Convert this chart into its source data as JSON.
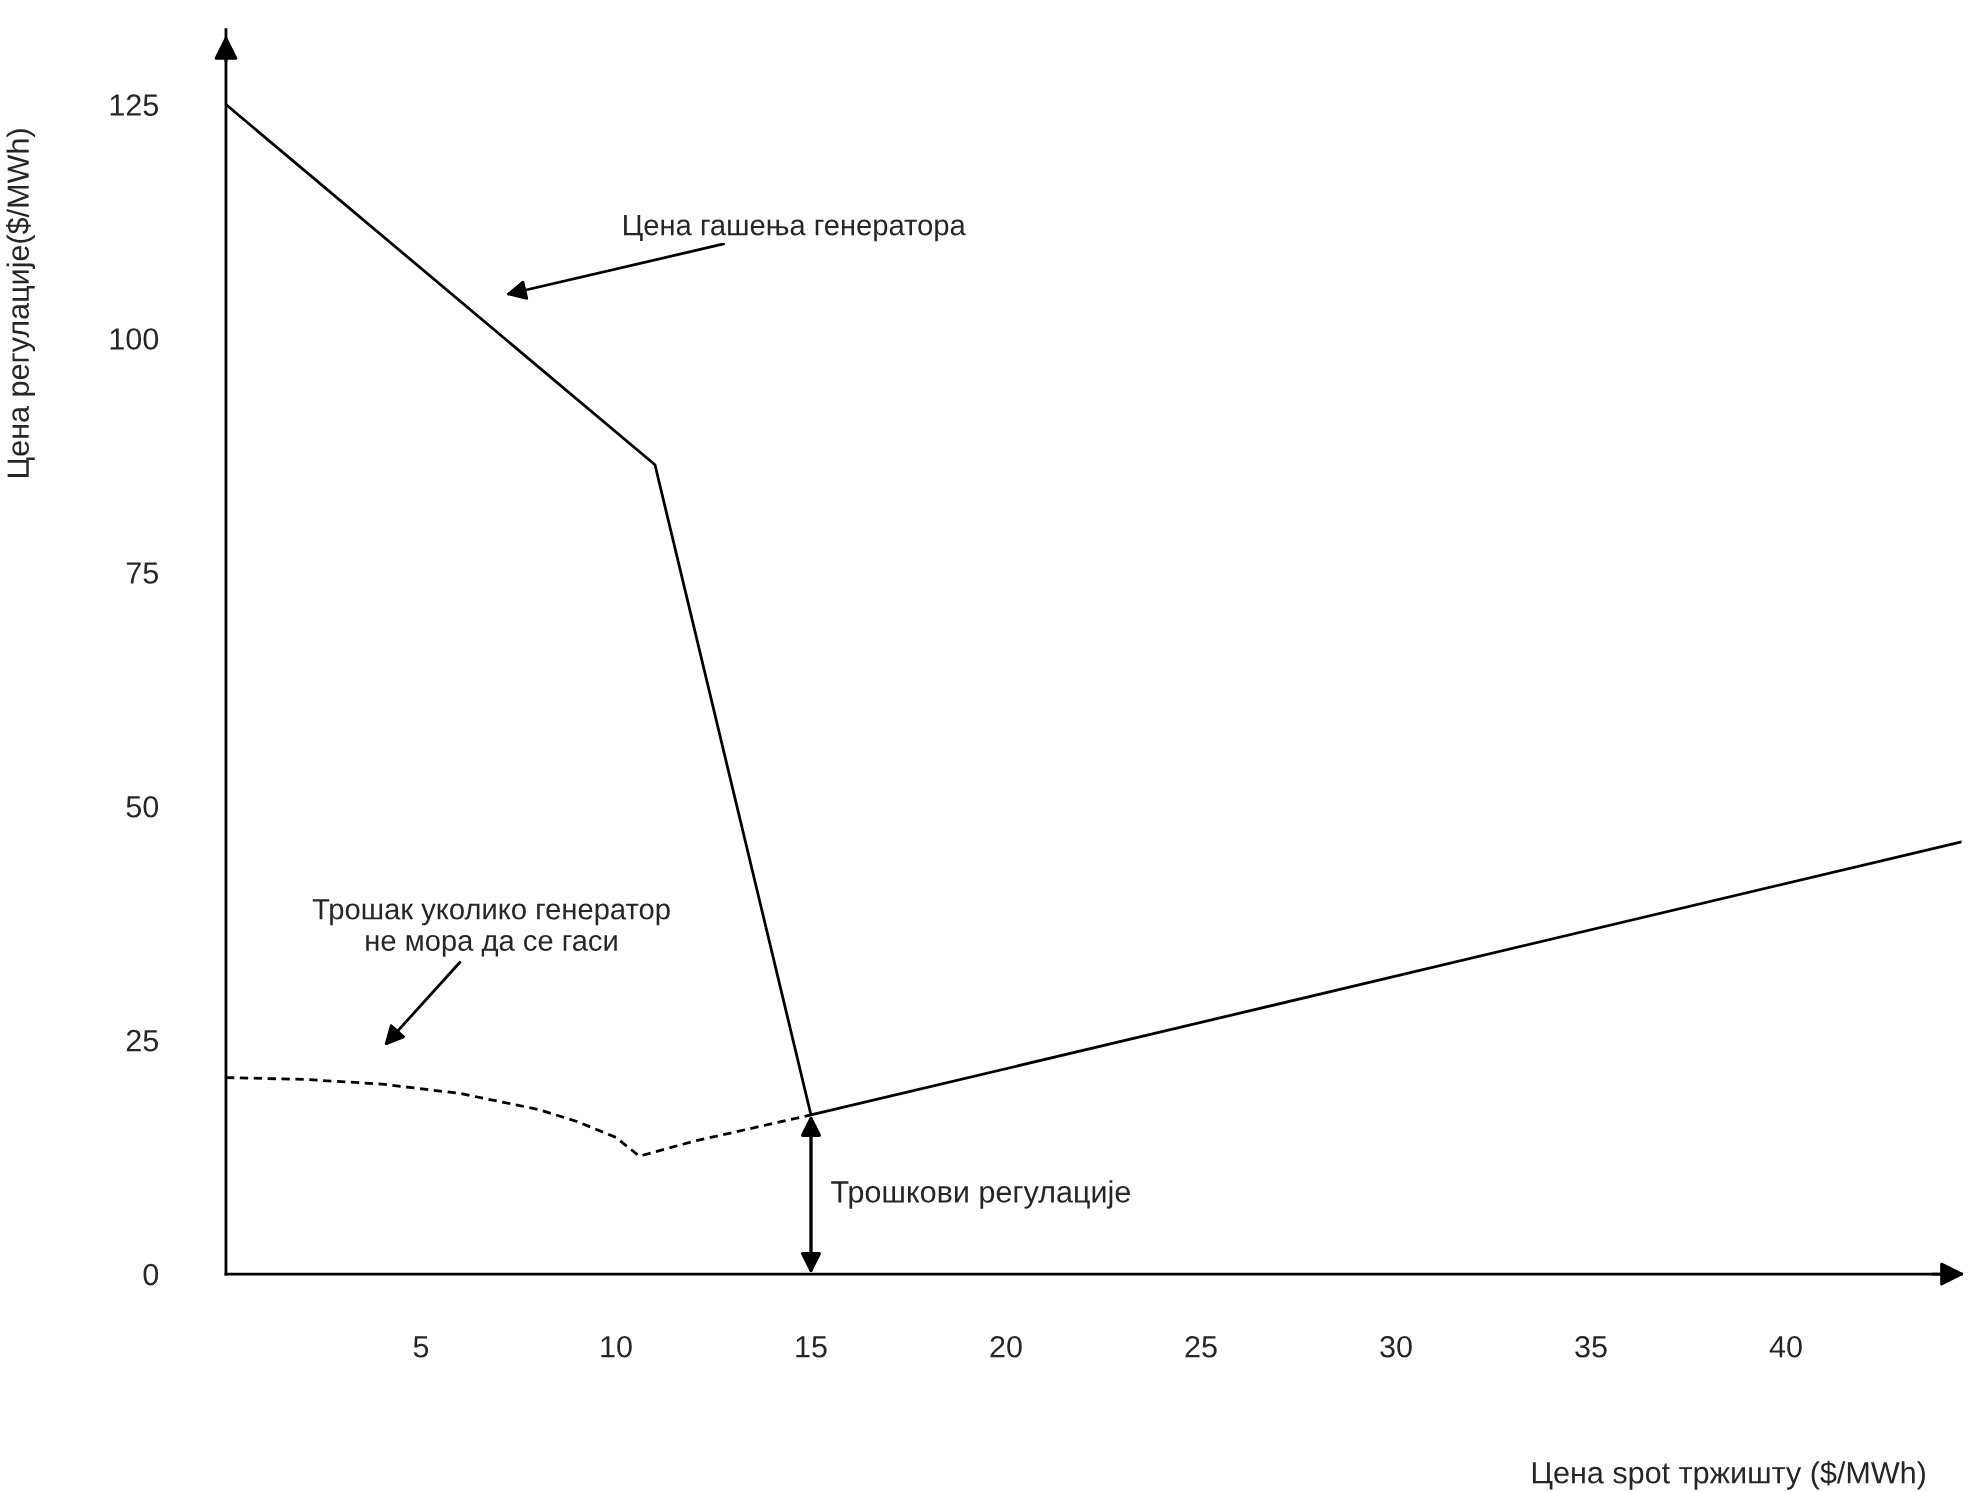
{
  "chart_data": {
    "type": "line",
    "xlabel": "Цена spot тржишту ($/MWh)",
    "ylabel": "Цена регулације($/MWh)",
    "series": [
      {
        "color": "#000000",
        "line_style": "solid",
        "x": [
          0,
          11,
          15,
          44.5
        ],
        "values": [
          125,
          86.5,
          17,
          46.2
        ]
      },
      {
        "color": "#000000",
        "line_style": "dashed",
        "x": [
          0,
          2,
          4,
          6,
          8,
          9,
          10,
          10.6,
          12,
          13.5,
          15
        ],
        "values": [
          21,
          20.8,
          20.3,
          19.3,
          17.6,
          16.3,
          14.6,
          12.6,
          14.2,
          15.6,
          17
        ]
      }
    ],
    "annotations": [
      "Цена гашења генератора",
      "Трошак уколико генератор\nне мора да се гаси",
      {
        "text": "Трошкови регулације",
        "x": 15,
        "y": 17
      }
    ],
    "xlim": [
      0,
      44.5
    ],
    "ylim": [
      0,
      133
    ],
    "xticks": [
      5,
      10,
      15,
      20,
      25,
      30,
      35,
      40
    ],
    "yticks": [
      0,
      25,
      50,
      75,
      100,
      125
    ],
    "grid": false,
    "legend": false,
    "marker": "none"
  }
}
